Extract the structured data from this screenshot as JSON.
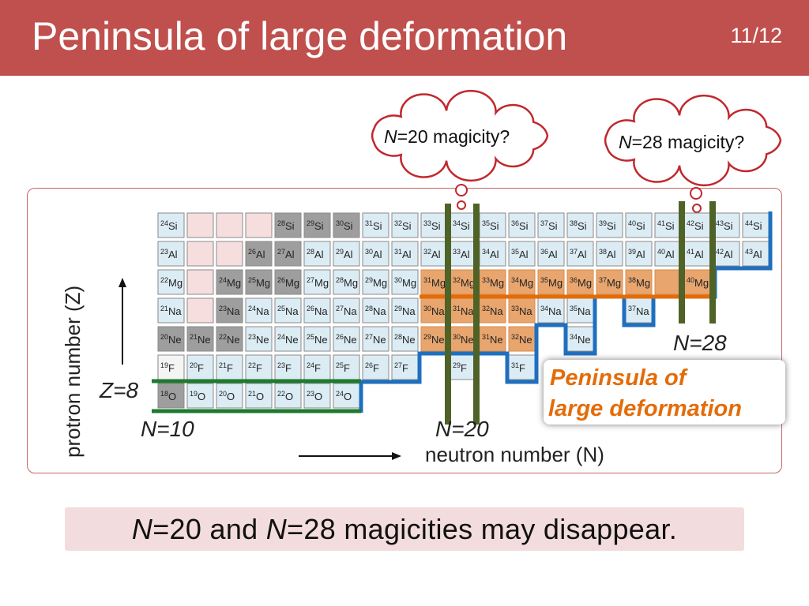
{
  "slide": {
    "title": "Peninsula of large deformation",
    "page": "11/12"
  },
  "clouds": [
    {
      "var": "N",
      "text": "=20 magicity?"
    },
    {
      "var": "N",
      "text": "=28 magicity?"
    }
  ],
  "conclusion": {
    "var1": "N",
    "part1": "=20 and ",
    "var2": "N",
    "part2": "=28 magicities may disappear."
  },
  "chart_data": {
    "type": "table",
    "xlabel": "neutron number (N)",
    "ylabel": "protron number (Z)",
    "rows": [
      {
        "element": "Si",
        "Z": 14,
        "cells": [
          {
            "A": 24,
            "s": "measured"
          },
          {
            "s": "empty"
          },
          {
            "s": "empty"
          },
          {
            "s": "empty"
          },
          {
            "A": 28,
            "s": "stable"
          },
          {
            "A": 29,
            "s": "stable"
          },
          {
            "A": 30,
            "s": "stable"
          },
          {
            "A": 31,
            "s": "measured"
          },
          {
            "A": 32,
            "s": "measured"
          },
          {
            "A": 33,
            "s": "measured"
          },
          {
            "A": 34,
            "s": "measured"
          },
          {
            "A": 35,
            "s": "measured"
          },
          {
            "A": 36,
            "s": "measured"
          },
          {
            "A": 37,
            "s": "measured"
          },
          {
            "A": 38,
            "s": "measured"
          },
          {
            "A": 39,
            "s": "measured"
          },
          {
            "A": 40,
            "s": "measured"
          },
          {
            "A": 41,
            "s": "measured"
          },
          {
            "A": 42,
            "s": "measured"
          },
          {
            "A": 43,
            "s": "measured"
          },
          {
            "A": 44,
            "s": "measured"
          }
        ]
      },
      {
        "element": "Al",
        "Z": 13,
        "cells": [
          {
            "A": 23,
            "s": "measured"
          },
          {
            "s": "empty"
          },
          {
            "s": "empty"
          },
          {
            "A": 26,
            "s": "stable"
          },
          {
            "A": 27,
            "s": "stable"
          },
          {
            "A": 28,
            "s": "measured"
          },
          {
            "A": 29,
            "s": "measured"
          },
          {
            "A": 30,
            "s": "measured"
          },
          {
            "A": 31,
            "s": "measured"
          },
          {
            "A": 32,
            "s": "measured"
          },
          {
            "A": 33,
            "s": "measured"
          },
          {
            "A": 34,
            "s": "measured"
          },
          {
            "A": 35,
            "s": "measured"
          },
          {
            "A": 36,
            "s": "measured"
          },
          {
            "A": 37,
            "s": "measured"
          },
          {
            "A": 38,
            "s": "measured"
          },
          {
            "A": 39,
            "s": "measured"
          },
          {
            "A": 40,
            "s": "measured"
          },
          {
            "A": 41,
            "s": "measured"
          },
          {
            "A": 42,
            "s": "measured"
          },
          {
            "A": 43,
            "s": "measured"
          }
        ]
      },
      {
        "element": "Mg",
        "Z": 12,
        "cells": [
          {
            "A": 22,
            "s": "measured"
          },
          {
            "s": "empty"
          },
          {
            "A": 24,
            "s": "stable"
          },
          {
            "A": 25,
            "s": "stable"
          },
          {
            "A": 26,
            "s": "stable"
          },
          {
            "A": 27,
            "s": "measured"
          },
          {
            "A": 28,
            "s": "measured"
          },
          {
            "A": 29,
            "s": "measured"
          },
          {
            "A": 30,
            "s": "measured"
          },
          {
            "A": 31,
            "s": "deformed"
          },
          {
            "A": 32,
            "s": "deformed"
          },
          {
            "A": 33,
            "s": "deformed"
          },
          {
            "A": 34,
            "s": "deformed"
          },
          {
            "A": 35,
            "s": "deformed"
          },
          {
            "A": 36,
            "s": "deformed"
          },
          {
            "A": 37,
            "s": "deformed"
          },
          {
            "A": 38,
            "s": "deformed"
          },
          {
            "s": "deformed-empty"
          },
          {
            "A": 40,
            "s": "deformed"
          }
        ]
      },
      {
        "element": "Na",
        "Z": 11,
        "cells": [
          {
            "A": 21,
            "s": "measured"
          },
          {
            "s": "empty"
          },
          {
            "A": 23,
            "s": "stable"
          },
          {
            "A": 24,
            "s": "measured"
          },
          {
            "A": 25,
            "s": "measured"
          },
          {
            "A": 26,
            "s": "measured"
          },
          {
            "A": 27,
            "s": "measured"
          },
          {
            "A": 28,
            "s": "measured"
          },
          {
            "A": 29,
            "s": "measured"
          },
          {
            "A": 30,
            "s": "deformed"
          },
          {
            "A": 31,
            "s": "deformed"
          },
          {
            "A": 32,
            "s": "deformed"
          },
          {
            "A": 33,
            "s": "deformed"
          },
          {
            "A": 34,
            "s": "measured"
          },
          {
            "A": 35,
            "s": "measured"
          },
          {
            "s": "gap"
          },
          {
            "A": 37,
            "s": "measured"
          }
        ]
      },
      {
        "element": "Ne",
        "Z": 10,
        "cells": [
          {
            "A": 20,
            "s": "stable"
          },
          {
            "A": 21,
            "s": "stable"
          },
          {
            "A": 22,
            "s": "stable"
          },
          {
            "A": 23,
            "s": "measured"
          },
          {
            "A": 24,
            "s": "measured"
          },
          {
            "A": 25,
            "s": "measured"
          },
          {
            "A": 26,
            "s": "measured"
          },
          {
            "A": 27,
            "s": "measured"
          },
          {
            "A": 28,
            "s": "measured"
          },
          {
            "A": 29,
            "s": "deformed"
          },
          {
            "A": 30,
            "s": "deformed"
          },
          {
            "A": 31,
            "s": "deformed"
          },
          {
            "A": 32,
            "s": "deformed"
          },
          {
            "s": "gap"
          },
          {
            "A": 34,
            "s": "measured"
          }
        ]
      },
      {
        "element": "F",
        "Z": 9,
        "cells": [
          {
            "A": 19,
            "s": "stable-white"
          },
          {
            "A": 20,
            "s": "measured"
          },
          {
            "A": 21,
            "s": "measured"
          },
          {
            "A": 22,
            "s": "measured"
          },
          {
            "A": 23,
            "s": "measured"
          },
          {
            "A": 24,
            "s": "measured"
          },
          {
            "A": 25,
            "s": "measured"
          },
          {
            "A": 26,
            "s": "measured"
          },
          {
            "A": 27,
            "s": "measured"
          },
          {
            "s": "gap"
          },
          {
            "A": 29,
            "s": "measured"
          },
          {
            "s": "gap"
          },
          {
            "A": 31,
            "s": "measured"
          }
        ]
      },
      {
        "element": "O",
        "Z": 8,
        "cells": [
          {
            "A": 18,
            "s": "stable"
          },
          {
            "A": 19,
            "s": "measured"
          },
          {
            "A": 20,
            "s": "measured"
          },
          {
            "A": 21,
            "s": "measured"
          },
          {
            "A": 22,
            "s": "measured"
          },
          {
            "A": 23,
            "s": "measured"
          },
          {
            "A": 24,
            "s": "measured"
          }
        ]
      }
    ],
    "labels": {
      "n10": "N=10",
      "n20": "N=20",
      "n28": "N=28",
      "z8": "Z=8",
      "peninsula_line1": "Peninsula of",
      "peninsula_line2": "large deformation"
    },
    "colors": {
      "stable": "#9e9e9e",
      "measured": "#dcecf4",
      "empty": "#f6dede",
      "deformed": "#e8a56e",
      "dripline": "#1f6fbf",
      "magic_line": "#4f6228",
      "z8_line": "#1e7a2e",
      "peninsula_text": "#e36c09"
    }
  }
}
